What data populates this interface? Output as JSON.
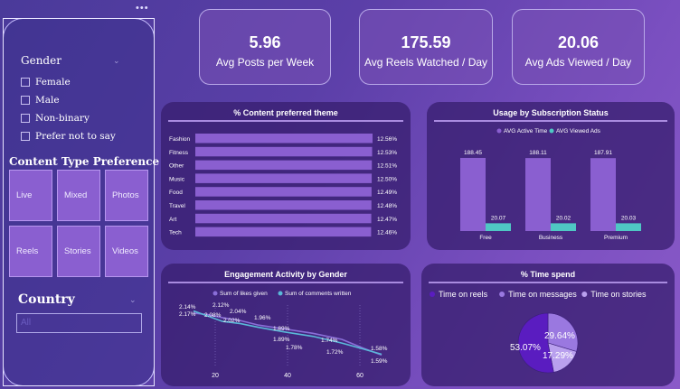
{
  "slicers": {
    "menu_dots": "•••",
    "gender": {
      "title": "Gender",
      "options": [
        "Female",
        "Male",
        "Non-binary",
        "Prefer not to say"
      ]
    },
    "content_type": {
      "title": "Content Type Preference",
      "tiles": [
        "Live",
        "Mixed",
        "Photos",
        "Reels",
        "Stories",
        "Videos"
      ]
    },
    "country": {
      "title": "Country",
      "selected": "All"
    }
  },
  "kpis": [
    {
      "value": "5.96",
      "label": "Avg Posts per Week"
    },
    {
      "value": "175.59",
      "label": "Avg Reels Watched / Day"
    },
    {
      "value": "20.06",
      "label": "Avg Ads Viewed / Day"
    }
  ],
  "colors": {
    "bar": "#8a5fd0",
    "teal": "#4fc7c4",
    "likes": "#8a6ed8",
    "comments": "#5ab8d8"
  },
  "chart_data": [
    {
      "type": "bar",
      "orientation": "horizontal",
      "title": "% Content preferred theme",
      "categories": [
        "Fashion",
        "Fitness",
        "Other",
        "Music",
        "Food",
        "Travel",
        "Art",
        "Tech"
      ],
      "values": [
        12.56,
        12.53,
        12.51,
        12.5,
        12.49,
        12.48,
        12.47,
        12.46
      ],
      "labels": [
        "12.56%",
        "12.53%",
        "12.51%",
        "12.50%",
        "12.49%",
        "12.48%",
        "12.47%",
        "12.46%"
      ]
    },
    {
      "type": "bar",
      "title": "Usage by Subscription Status",
      "categories": [
        "Free",
        "Business",
        "Premium"
      ],
      "series": [
        {
          "name": "AVG Active Time",
          "values": [
            188.45,
            188.11,
            187.91
          ],
          "labels": [
            "188.45",
            "188.11",
            "187.91"
          ]
        },
        {
          "name": "AVG Viewed Ads",
          "values": [
            20.07,
            20.02,
            20.03
          ],
          "labels": [
            "20.07",
            "20.02",
            "20.03"
          ]
        }
      ],
      "ylim": [
        0,
        200
      ],
      "legend": "top"
    },
    {
      "type": "line",
      "title": "Engagement Activity by Gender",
      "legend": "top",
      "x_ticks": [
        "20",
        "40",
        "60"
      ],
      "xlim": [
        10,
        70
      ],
      "ylim": [
        1.5,
        2.2
      ],
      "series": [
        {
          "name": "Sum of likes given",
          "x": [
            14,
            18,
            22,
            27,
            32,
            39,
            47,
            55,
            61,
            66
          ],
          "values": [
            2.14,
            2.12,
            2.08,
            2.04,
            1.98,
            1.93,
            1.87,
            1.79,
            1.67,
            1.58
          ]
        },
        {
          "name": "Sum of comments written",
          "x": [
            14,
            18,
            22,
            27,
            32,
            39,
            47,
            55,
            61,
            66
          ],
          "values": [
            2.17,
            2.1,
            2.03,
            2.0,
            1.95,
            1.89,
            1.83,
            1.74,
            1.66,
            1.59
          ]
        }
      ],
      "point_labels": [
        "2.14%",
        "2.17%",
        "2.12%",
        "2.08%",
        "2.04%",
        "2.02%",
        "1.96%",
        "1.89%",
        "1.89%",
        "1.78%",
        "1.74%",
        "1.72%",
        "1.58%",
        "1.59%"
      ]
    },
    {
      "type": "pie",
      "title": "% Time spend",
      "legend": "top",
      "slices": [
        {
          "name": "Time on reels",
          "value": 53.07,
          "label": "53.07%",
          "color": "#5a1cc0"
        },
        {
          "name": "Time on messages",
          "value": 29.64,
          "label": "29.64%",
          "color": "#9a78e0"
        },
        {
          "name": "Time on stories",
          "value": 17.29,
          "label": "17.29%",
          "color": "#b9a0ee"
        }
      ]
    }
  ]
}
